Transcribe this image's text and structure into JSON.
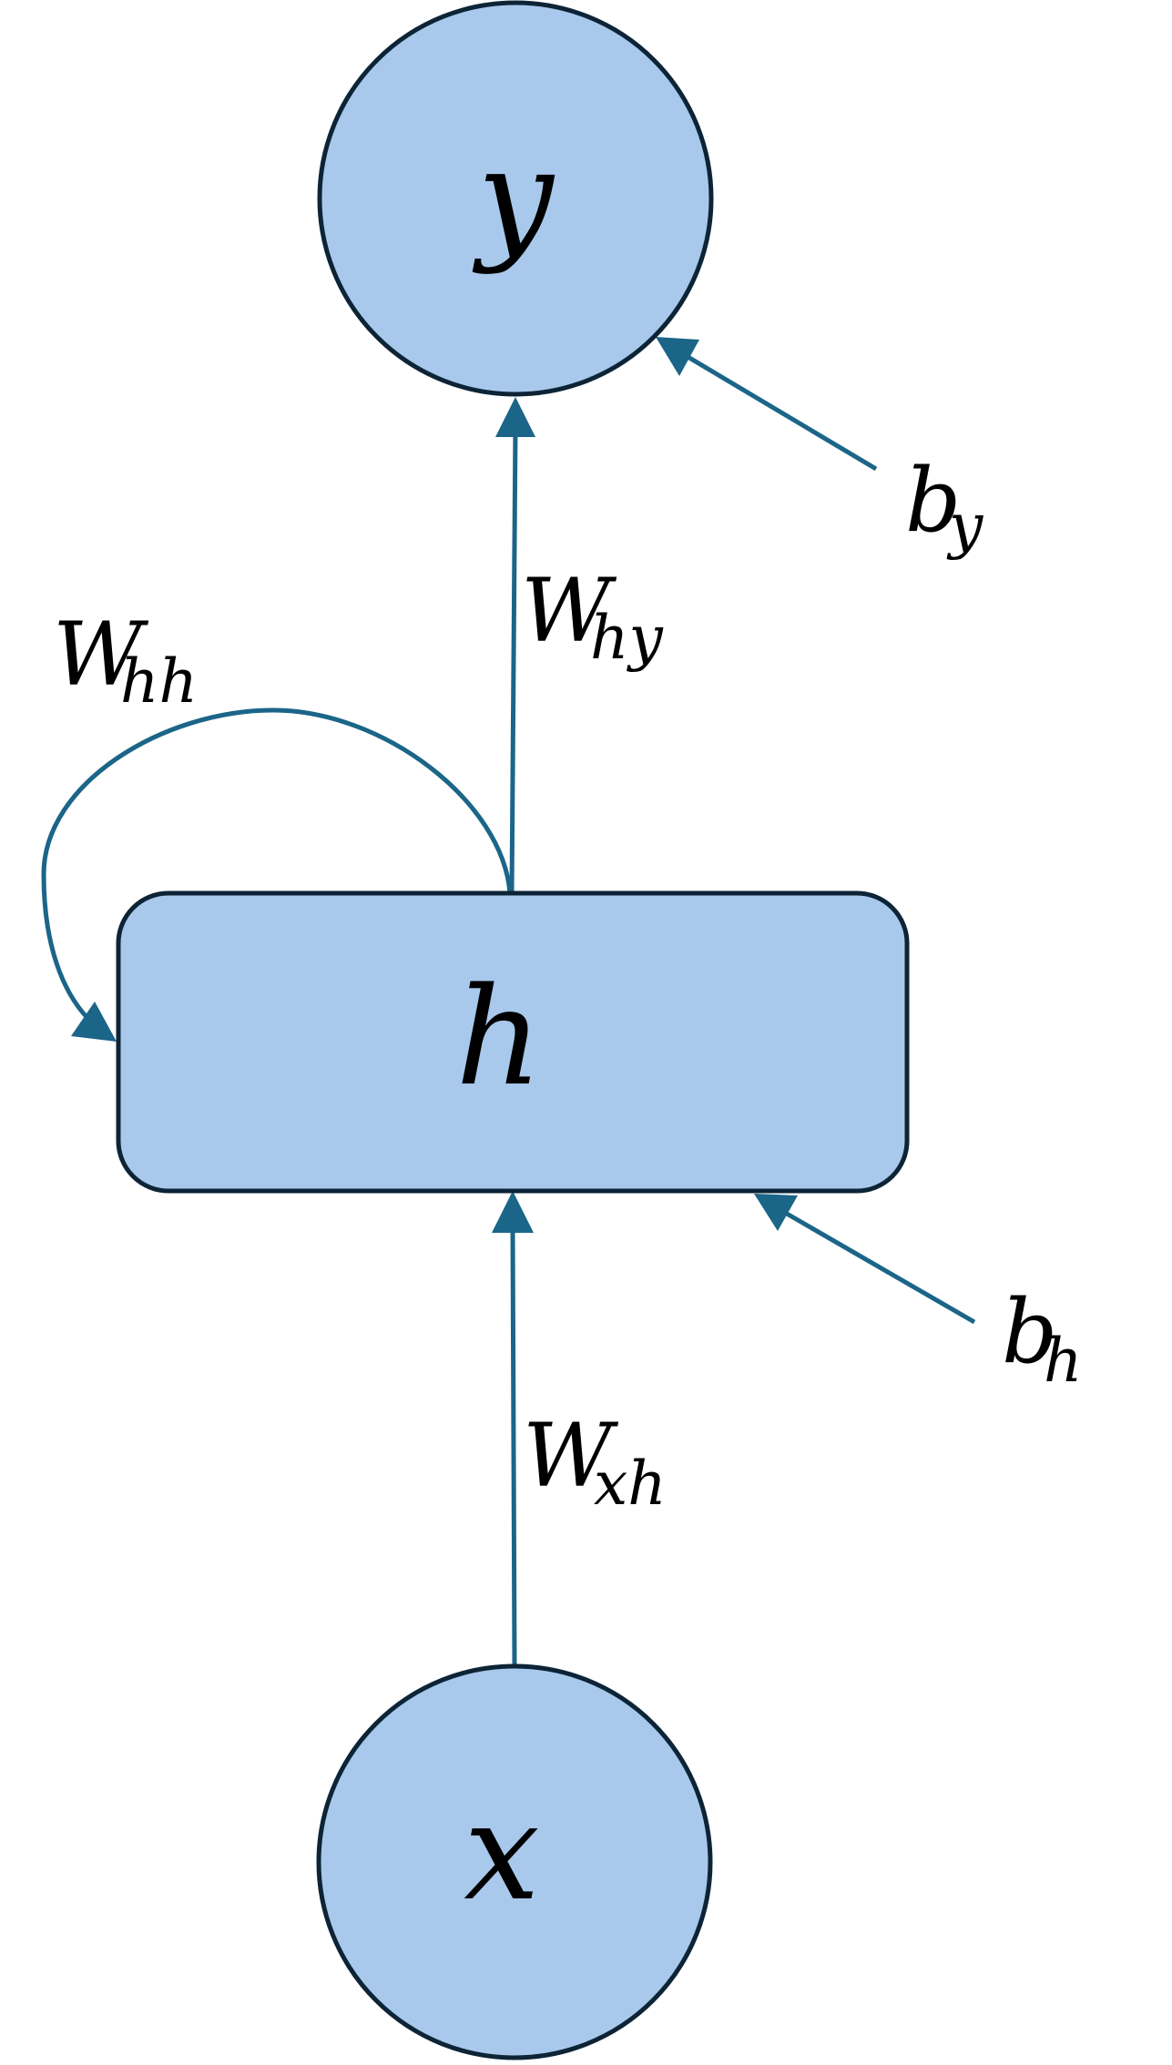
{
  "nodes": {
    "output": {
      "symbol": "y"
    },
    "hidden": {
      "symbol": "h"
    },
    "input": {
      "symbol": "x"
    }
  },
  "weights": {
    "hidden_to_output": {
      "main": "W",
      "sub": "hy"
    },
    "recurrent": {
      "main": "W",
      "sub": "hh"
    },
    "input_to_hidden": {
      "main": "W",
      "sub": "xh"
    }
  },
  "biases": {
    "output": {
      "main": "b",
      "sub": "y"
    },
    "hidden": {
      "main": "b",
      "sub": "h"
    }
  },
  "colors": {
    "node_fill": "#a8c9eb",
    "node_stroke": "#0d2437",
    "edge": "#1b6588",
    "text": "#000000"
  }
}
